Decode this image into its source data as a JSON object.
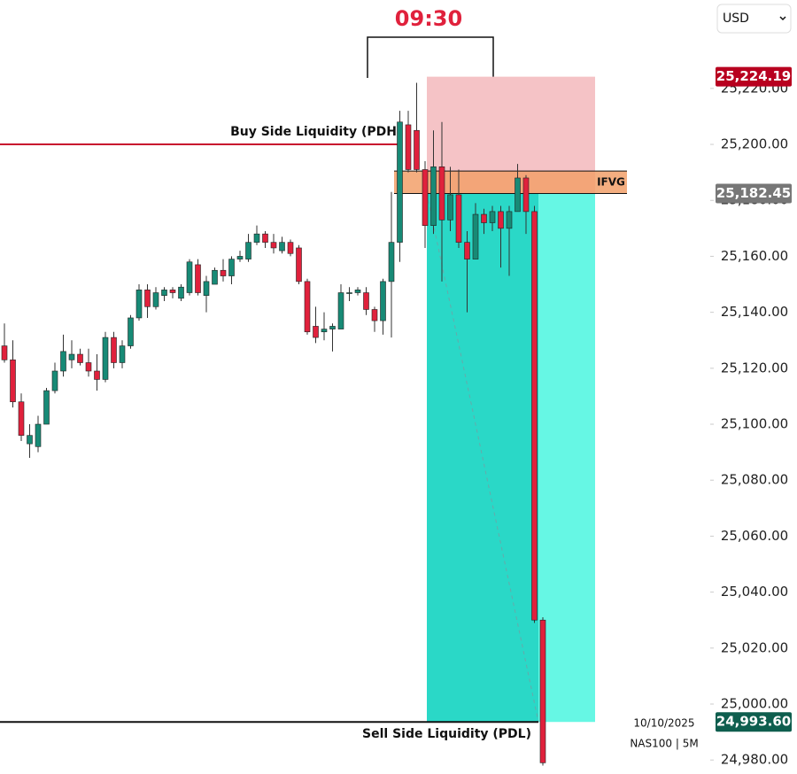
{
  "chart_data": {
    "type": "candlestick",
    "title": "09:30",
    "currency": "USD",
    "date": "10/10/2025",
    "symbol": "NAS100 | 5M",
    "ylim": [
      24975,
      25251.6
    ],
    "yticks": [
      {
        "value": 24980,
        "label": "24,980.00"
      },
      {
        "value": 25000,
        "label": "25,000.00"
      },
      {
        "value": 25020,
        "label": "25,020.00"
      },
      {
        "value": 25040,
        "label": "25,040.00"
      },
      {
        "value": 25060,
        "label": "25,060.00"
      },
      {
        "value": 25080,
        "label": "25,080.00"
      },
      {
        "value": 25100,
        "label": "25,100.00"
      },
      {
        "value": 25120,
        "label": "25,120.00"
      },
      {
        "value": 25140,
        "label": "25,140.00"
      },
      {
        "value": 25160,
        "label": "25,160.00"
      },
      {
        "value": 25180,
        "label": "25,180.00"
      },
      {
        "value": 25200,
        "label": "25,200.00"
      },
      {
        "value": 25220,
        "label": "25,220.00"
      }
    ],
    "up_color": "#178a76",
    "down_color": "#e0213c",
    "open": [
      25128,
      25123,
      25108,
      25093,
      25092,
      25100,
      25112,
      25119,
      25123,
      25125,
      25122,
      25119,
      25116,
      25131,
      25122,
      25128,
      25138,
      25148,
      25142,
      25146,
      25148,
      25145,
      25147,
      25157,
      25146,
      25150,
      25155,
      25153,
      25159,
      25159,
      25165,
      25168,
      25165,
      25162,
      25165,
      25163,
      25151,
      25135,
      25133,
      25134,
      25134,
      25147,
      25147,
      25147,
      25141,
      25137,
      25151,
      25165,
      25207,
      25205,
      25191,
      25171,
      25192,
      25173,
      25182,
      25165,
      25159,
      25175,
      25172,
      25176,
      25170,
      25176,
      25188,
      25176,
      25030
    ],
    "high": [
      25136,
      25130,
      25111,
      25100,
      25103,
      25113,
      25122,
      25132,
      25130,
      25127,
      25127,
      25125,
      25133,
      25133,
      25130,
      25139,
      25150,
      25150,
      25149,
      25149,
      25149,
      25150,
      25159,
      25159,
      25153,
      25156,
      25159,
      25160,
      25162,
      25168,
      25171,
      25169,
      25168,
      25167,
      25166,
      25164,
      25152,
      25142,
      25140,
      25136,
      25150,
      25149,
      25149,
      25149,
      25142,
      25152,
      25183,
      25212,
      25212,
      25222,
      25194,
      25205,
      25208,
      25192,
      25191,
      25169,
      25179,
      25177,
      25178,
      25178,
      25178,
      25193,
      25189,
      25178,
      25031
    ],
    "low": [
      25122,
      25106,
      25094,
      25088,
      25090,
      25100,
      25111,
      25117,
      25120,
      25121,
      25117,
      25112,
      25115,
      25120,
      25120,
      25127,
      25137,
      25138,
      25141,
      25144,
      25145,
      25144,
      25146,
      25146,
      25140,
      25150,
      25151,
      25150,
      25158,
      25158,
      25164,
      25163,
      25161,
      25161,
      25160,
      25150,
      25132,
      25129,
      25130,
      25126,
      25134,
      25144,
      25146,
      25139,
      25133,
      25132,
      25131,
      25158,
      25190,
      25190,
      25163,
      25168,
      25151,
      25169,
      25163,
      25140,
      25159,
      25168,
      25169,
      25156,
      25153,
      25176,
      25168,
      25029,
      24978
    ],
    "close": [
      25123,
      25108,
      25096,
      25096,
      25100,
      25112,
      25119,
      25126,
      25125,
      25122,
      25119,
      25116,
      25131,
      25122,
      25128,
      25138,
      25148,
      25142,
      25147,
      25148,
      25147,
      25149,
      25158,
      25147,
      25151,
      25155,
      25153,
      25159,
      25160,
      25165,
      25168,
      25165,
      25163,
      25165,
      25161,
      25151,
      25133,
      25131,
      25134,
      25135,
      25147,
      25147,
      25148,
      25141,
      25137,
      25151,
      25165,
      25208,
      25191,
      25191,
      25171,
      25192,
      25173,
      25182,
      25165,
      25159,
      25175,
      25172,
      25176,
      25170,
      25176,
      25188,
      25176,
      25030,
      24979
    ],
    "levels": [
      {
        "name": "Buy Side Liquidity (PDH",
        "value": 25200,
        "color": "#c8102e"
      },
      {
        "name": "Sell Side Liquidity (PDL)",
        "value": 24993.6,
        "color": "#111111"
      }
    ],
    "ifvg": {
      "name": "IFVG",
      "high": 25190.5,
      "low": 25182.45
    },
    "position": {
      "stop": {
        "value": 25224.19,
        "label": "25,224.19"
      },
      "entry": {
        "value": 25182.45,
        "label": "25,182.45"
      },
      "target": {
        "value": 24993.6,
        "label": "24,993.60"
      }
    }
  }
}
